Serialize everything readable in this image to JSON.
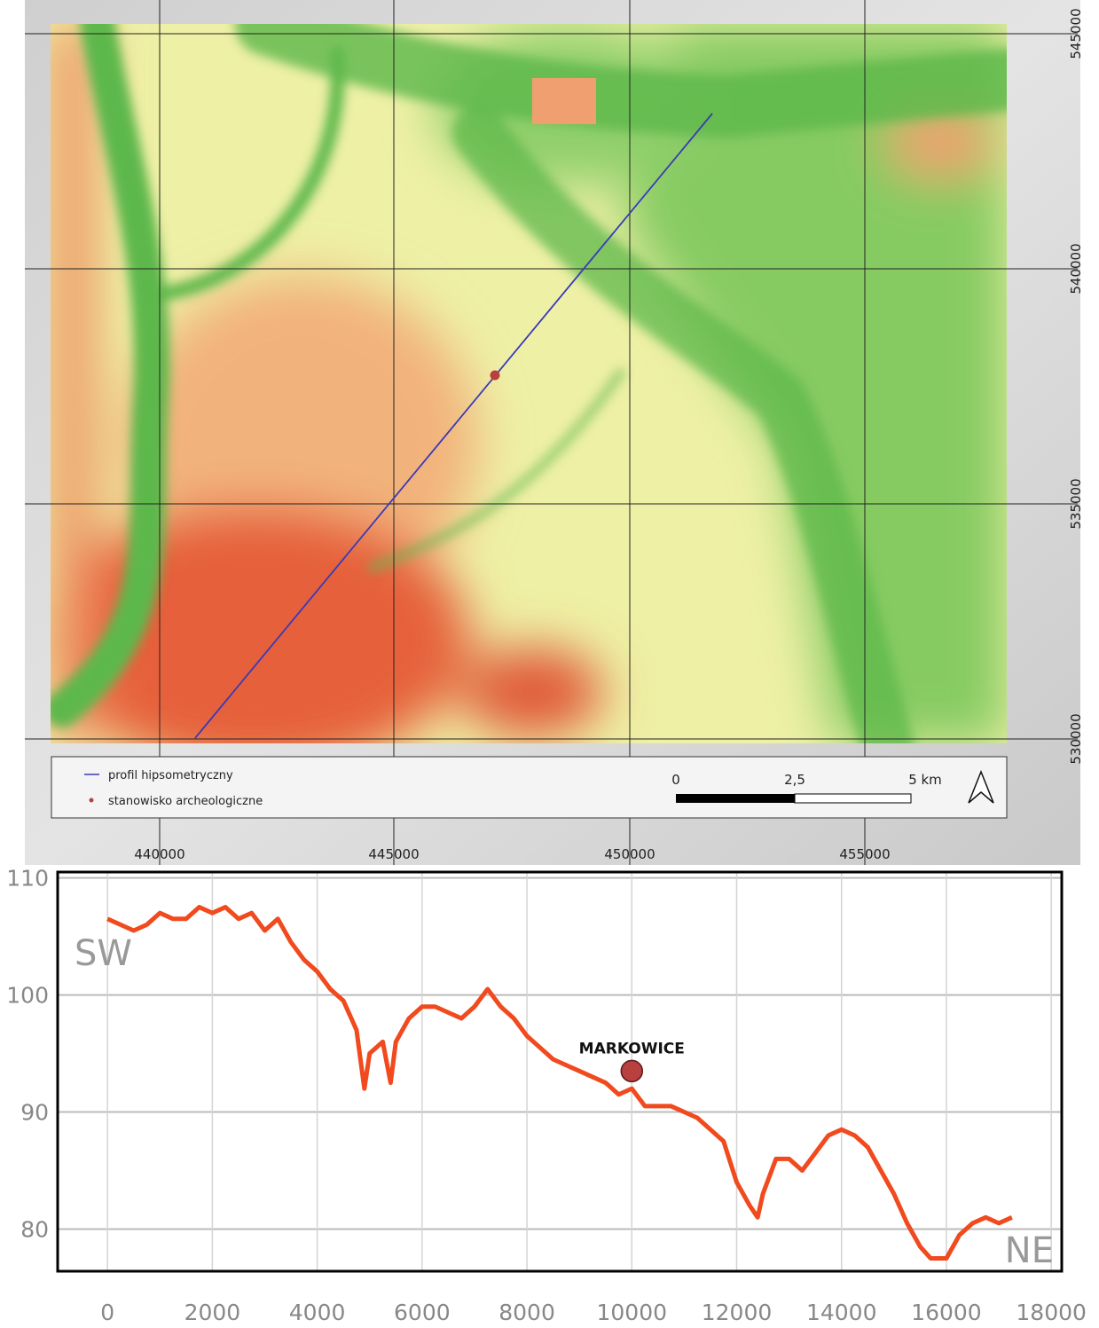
{
  "map": {
    "x_labels": [
      "440000",
      "445000",
      "450000",
      "455000"
    ],
    "y_labels": [
      "545000",
      "540000",
      "535000",
      "530000"
    ],
    "legend": [
      "profil hipsometryczny",
      "stanowisko archeologiczne"
    ],
    "scale_labels": [
      "0",
      "2,5",
      "5 km"
    ]
  },
  "chart_data": {
    "type": "line",
    "x": [
      0,
      250,
      500,
      750,
      1000,
      1250,
      1500,
      1750,
      2000,
      2250,
      2500,
      2750,
      3000,
      3250,
      3500,
      3750,
      4000,
      4250,
      4500,
      4750,
      4900,
      5000,
      5250,
      5400,
      5500,
      5750,
      6000,
      6250,
      6500,
      6750,
      7000,
      7250,
      7500,
      7750,
      8000,
      8250,
      8500,
      8750,
      9000,
      9250,
      9500,
      9750,
      10000,
      10250,
      10500,
      10750,
      11000,
      11250,
      11500,
      11750,
      12000,
      12250,
      12400,
      12500,
      12750,
      13000,
      13250,
      13500,
      13750,
      14000,
      14250,
      14500,
      14750,
      15000,
      15250,
      15500,
      15700,
      16000,
      16250,
      16500,
      16750,
      17000,
      17250
    ],
    "series": [
      {
        "color": "#f04a1e",
        "values": [
          106.5,
          106,
          105.5,
          106,
          107,
          106.5,
          106.5,
          107.5,
          107,
          107.5,
          106.5,
          107,
          105.5,
          106.5,
          104.5,
          103,
          102,
          100.5,
          99.5,
          97,
          92,
          95,
          96,
          92.5,
          96,
          98,
          99,
          99,
          98.5,
          98,
          99,
          100.5,
          99,
          98,
          96.5,
          95.5,
          94.5,
          94,
          93.5,
          93,
          92.5,
          91.5,
          92,
          90.5,
          90.5,
          90.5,
          90,
          89.5,
          88.5,
          87.5,
          84,
          82,
          81,
          83,
          86,
          86,
          85,
          86.5,
          88,
          88.5,
          88,
          87,
          85,
          83,
          80.5,
          78.5,
          77.5,
          77.5,
          79.5,
          80.5,
          81,
          80.5,
          81
        ]
      }
    ],
    "xlim": [
      -950,
      18200
    ],
    "ylim": [
      76.4,
      110.5
    ],
    "xticks": [
      0,
      2000,
      4000,
      6000,
      8000,
      10000,
      12000,
      14000,
      16000,
      18000
    ],
    "yticks": [
      80,
      90,
      100,
      110
    ],
    "grid": true,
    "corner_labels": [
      "SW",
      "NE"
    ],
    "marker": {
      "x": 10000,
      "y": 93.5,
      "label": "MARKOWICE",
      "color": "#b8403f"
    }
  }
}
